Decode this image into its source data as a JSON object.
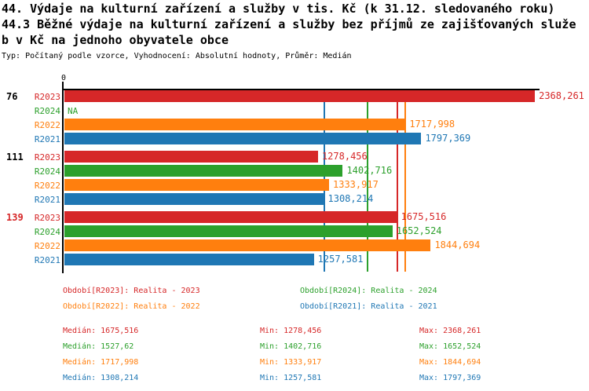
{
  "title": {
    "line1": "44. Výdaje na kulturní zařízení a služby v tis. Kč (k 31.12. sledovaného roku)",
    "line2": "44.3 Běžné výdaje na kulturní zařízení a služby bez příjmů ze zajišťovaných služe",
    "line3": "b v Kč na jednoho obyvatele obce",
    "meta": "Typ: Počítaný podle vzorce, Vyhodnocení: Absolutní hodnoty, Průměr: Medián"
  },
  "colors": {
    "R2023": "#d62728",
    "R2024": "#2ca02c",
    "R2022": "#ff7f0e",
    "R2021": "#1f77b4",
    "axis": "#000000",
    "highlight_group": "#d62728",
    "normal_group": "#000000"
  },
  "chart_data": {
    "type": "bar",
    "orientation": "horizontal",
    "origin_label": "0",
    "xlim": [
      0,
      2368.261
    ],
    "series_order": [
      "R2023",
      "R2024",
      "R2022",
      "R2021"
    ],
    "groups": [
      {
        "label": "76",
        "label_color": "#000000",
        "bars": [
          {
            "series": "R2023",
            "value": 2368.261,
            "display": "2368,261"
          },
          {
            "series": "R2024",
            "value": null,
            "display": "NA"
          },
          {
            "series": "R2022",
            "value": 1717.998,
            "display": "1717,998"
          },
          {
            "series": "R2021",
            "value": 1797.369,
            "display": "1797,369"
          }
        ]
      },
      {
        "label": "111",
        "label_color": "#000000",
        "bars": [
          {
            "series": "R2023",
            "value": 1278.456,
            "display": "1278,456"
          },
          {
            "series": "R2024",
            "value": 1402.716,
            "display": "1402,716"
          },
          {
            "series": "R2022",
            "value": 1333.917,
            "display": "1333,917"
          },
          {
            "series": "R2021",
            "value": 1308.214,
            "display": "1308,214"
          }
        ]
      },
      {
        "label": "139",
        "label_color": "#d62728",
        "bars": [
          {
            "series": "R2023",
            "value": 1675.516,
            "display": "1675,516"
          },
          {
            "series": "R2024",
            "value": 1652.524,
            "display": "1652,524"
          },
          {
            "series": "R2022",
            "value": 1844.694,
            "display": "1844,694"
          },
          {
            "series": "R2021",
            "value": 1257.581,
            "display": "1257,581"
          }
        ]
      }
    ],
    "median_lines": [
      {
        "series": "R2023",
        "value": 1675.516
      },
      {
        "series": "R2024",
        "value": 1527.62
      },
      {
        "series": "R2022",
        "value": 1717.998
      },
      {
        "series": "R2021",
        "value": 1308.214
      }
    ]
  },
  "legend": [
    {
      "series": "R2023",
      "label": "Období[R2023]: Realita - 2023"
    },
    {
      "series": "R2024",
      "label": "Období[R2024]: Realita - 2024"
    },
    {
      "series": "R2022",
      "label": "Období[R2022]: Realita - 2022"
    },
    {
      "series": "R2021",
      "label": "Období[R2021]: Realita - 2021"
    }
  ],
  "stats_labels": {
    "median": "Medián",
    "min": "Min",
    "max": "Max"
  },
  "stats": [
    {
      "series": "R2023",
      "median": "1675,516",
      "min": "1278,456",
      "max": "2368,261"
    },
    {
      "series": "R2024",
      "median": "1527,62",
      "min": "1402,716",
      "max": "1652,524"
    },
    {
      "series": "R2022",
      "median": "1717,998",
      "min": "1333,917",
      "max": "1844,694"
    },
    {
      "series": "R2021",
      "median": "1308,214",
      "min": "1257,581",
      "max": "1797,369"
    }
  ]
}
